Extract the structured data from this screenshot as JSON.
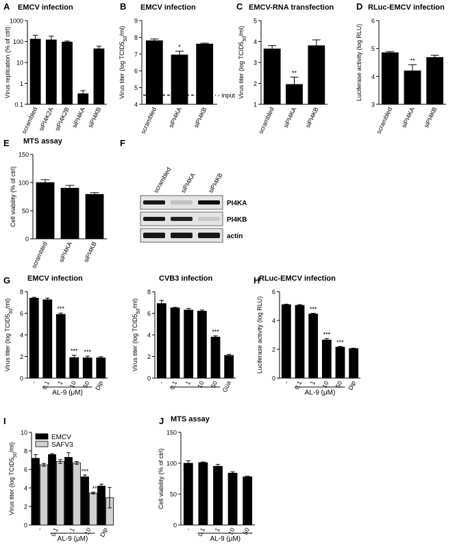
{
  "chart_data": [
    {
      "id": "A",
      "panel": "A",
      "type": "bar",
      "scale": "log",
      "title": "EMCV infection",
      "ylabel": "Virus replication (% of ctrl)",
      "ylim": [
        0.1,
        1000
      ],
      "yticks": [
        0.1,
        1,
        10,
        100,
        1000
      ],
      "yticklabels": [
        "0.1",
        "1",
        "10",
        "100",
        "1000"
      ],
      "categories": [
        "scrambled",
        "siPI4K2A",
        "siPI4K2B",
        "siPI4KA",
        "siPI4KB"
      ],
      "values": [
        130,
        120,
        95,
        0.32,
        45
      ],
      "errors": [
        [
          50,
          70
        ],
        [
          50,
          60
        ],
        [
          12,
          10
        ],
        [
          0.1,
          0.13
        ],
        [
          15,
          15
        ]
      ],
      "annotations": []
    },
    {
      "id": "B",
      "panel": "B",
      "type": "bar",
      "title": "EMCV infection",
      "ylabel": "Virus titer (log TCID50/ml)",
      "ylim": [
        4,
        9
      ],
      "yticks": [
        4,
        5,
        6,
        7,
        8,
        9
      ],
      "categories": [
        "scrambled",
        "siPI4KA",
        "siPI4KB"
      ],
      "values": [
        7.8,
        6.95,
        7.6
      ],
      "errors": [
        0.1,
        0.22,
        0.05
      ],
      "annotations": [
        "",
        "*",
        ""
      ],
      "reference_line": {
        "value": 4.55,
        "label": "input"
      }
    },
    {
      "id": "C",
      "panel": "C",
      "type": "bar",
      "title": "EMCV-RNA transfection",
      "ylabel": "Virus titer (log TCID50/ml)",
      "ylim": [
        1,
        5
      ],
      "yticks": [
        1,
        2,
        3,
        4,
        5
      ],
      "categories": [
        "scrambled",
        "siPI4KA",
        "siPI4KB"
      ],
      "values": [
        3.65,
        1.95,
        3.8
      ],
      "errors": [
        0.15,
        0.35,
        0.28
      ],
      "annotations": [
        "",
        "**",
        ""
      ]
    },
    {
      "id": "D",
      "panel": "D",
      "type": "bar",
      "title": "RLuc-EMCV infection",
      "ylabel": "Luciferase activity (log RLU)",
      "ylim": [
        3,
        6
      ],
      "yticks": [
        3,
        4,
        5,
        6
      ],
      "categories": [
        "scrambled",
        "siPI4KA",
        "siPI4KB"
      ],
      "values": [
        4.85,
        4.2,
        4.68
      ],
      "errors": [
        0.04,
        0.22,
        0.08
      ],
      "annotations": [
        "",
        "**",
        ""
      ]
    },
    {
      "id": "E",
      "panel": "E",
      "type": "bar",
      "title": "MTS assay",
      "ylabel": "Cell viability (% of ctrl)",
      "ylim": [
        0,
        150
      ],
      "yticks": [
        0,
        50,
        100,
        150
      ],
      "categories": [
        "scrambled",
        "siPI4KA",
        "siPI4KB"
      ],
      "values": [
        100,
        90,
        79
      ],
      "errors": [
        5,
        5,
        3
      ],
      "annotations": [
        "",
        "",
        ""
      ]
    },
    {
      "id": "G1",
      "panel": "G",
      "type": "bar",
      "title": "EMCV infection",
      "ylabel": "Virus titer (log TCID50/ml)",
      "ylim": [
        0,
        8
      ],
      "yticks": [
        0,
        2,
        4,
        6,
        8
      ],
      "categories": [
        "-",
        "0.1",
        "1",
        "10",
        "50",
        "Dip"
      ],
      "values": [
        7.4,
        7.25,
        5.9,
        1.9,
        1.88,
        1.88
      ],
      "errors": [
        0.08,
        0.15,
        0.12,
        0.22,
        0.15,
        0.1
      ],
      "annotations": [
        "",
        "",
        "***",
        "***",
        "***",
        ""
      ],
      "xgroup": {
        "label": "AL-9 (μM)",
        "from": 1,
        "to": 4
      }
    },
    {
      "id": "G2",
      "panel": "",
      "type": "bar",
      "title": "CVB3 infection",
      "ylabel": "Virus titer (log TCID50/ml)",
      "ylim": [
        0,
        8
      ],
      "yticks": [
        0,
        2,
        4,
        6,
        8
      ],
      "categories": [
        "-",
        "0.1",
        "1",
        "10",
        "50",
        "Gua"
      ],
      "values": [
        6.9,
        6.5,
        6.3,
        6.2,
        3.8,
        2.1
      ],
      "errors": [
        0.3,
        0.05,
        0.15,
        0.1,
        0.12,
        0.1
      ],
      "annotations": [
        "",
        "",
        "",
        "",
        "***",
        ""
      ],
      "xgroup": {
        "label": "",
        "from": 1,
        "to": 4
      }
    },
    {
      "id": "H",
      "panel": "H",
      "type": "bar",
      "title": "RLuc-EMCV infection",
      "ylabel": "Luciferase activity (log RLU)",
      "ylim": [
        0,
        6
      ],
      "yticks": [
        0,
        2,
        4,
        6
      ],
      "categories": [
        "-",
        "0.1",
        "1",
        "10",
        "50",
        "Dip"
      ],
      "values": [
        5.1,
        5.05,
        4.45,
        2.65,
        2.15,
        2.05
      ],
      "errors": [
        0.03,
        0.05,
        0.05,
        0.1,
        0.05,
        0.03
      ],
      "annotations": [
        "",
        "",
        "***",
        "***",
        "***",
        ""
      ],
      "xgroup": {
        "label": "AL-9 (μM)",
        "from": 1,
        "to": 4
      }
    },
    {
      "id": "I",
      "panel": "I",
      "type": "bar",
      "title": "",
      "ylabel": "Virus titer (log TCID50/ml)",
      "ylim": [
        0,
        10
      ],
      "yticks": [
        0,
        2,
        4,
        6,
        8,
        10
      ],
      "categories": [
        "-",
        "0.1",
        "1",
        "10",
        "Dip"
      ],
      "series": [
        {
          "name": "EMCV",
          "color": "#000000",
          "values": [
            7.2,
            7.6,
            7.3,
            5.2,
            4.2
          ],
          "errors": [
            0.4,
            0.1,
            0.5,
            0.2,
            0.2
          ],
          "annotations": [
            "",
            "",
            "",
            "***",
            ""
          ]
        },
        {
          "name": "SAFV3",
          "color": "#d0d0d0",
          "values": [
            6.5,
            6.85,
            6.7,
            3.45,
            2.95
          ],
          "errors": [
            0.15,
            0.2,
            0.15,
            0.1,
            1.1
          ],
          "annotations": [
            "",
            "",
            "",
            "***",
            ""
          ]
        }
      ],
      "legend": "top-left",
      "xgroup": {
        "label": "AL-9 (μM)",
        "from": 1,
        "to": 3
      }
    },
    {
      "id": "J",
      "panel": "J",
      "type": "bar",
      "title": "MTS assay",
      "ylabel": "Cell viability (% of ctrl)",
      "ylim": [
        0,
        150
      ],
      "yticks": [
        0,
        50,
        100,
        150
      ],
      "categories": [
        "-",
        "0.1",
        "1",
        "10",
        "50"
      ],
      "values": [
        100,
        101,
        95,
        84,
        78
      ],
      "errors": [
        4,
        1,
        3,
        2,
        1
      ],
      "annotations": [
        "",
        "",
        "",
        "",
        ""
      ],
      "xgroup": {
        "label": "AL-9 (μM)",
        "from": 1,
        "to": 4
      }
    }
  ],
  "western_blot": {
    "panel": "F",
    "lanes": [
      "scrambled",
      "siPI4KA",
      "siPI4KB"
    ],
    "rows": [
      {
        "label": "PI4KA",
        "bands": [
          0.9,
          0.15,
          0.95
        ]
      },
      {
        "label": "PI4KB",
        "bands": [
          0.9,
          0.85,
          0.12
        ]
      },
      {
        "label": "actin",
        "bands": [
          0.9,
          0.9,
          0.9
        ]
      }
    ]
  }
}
